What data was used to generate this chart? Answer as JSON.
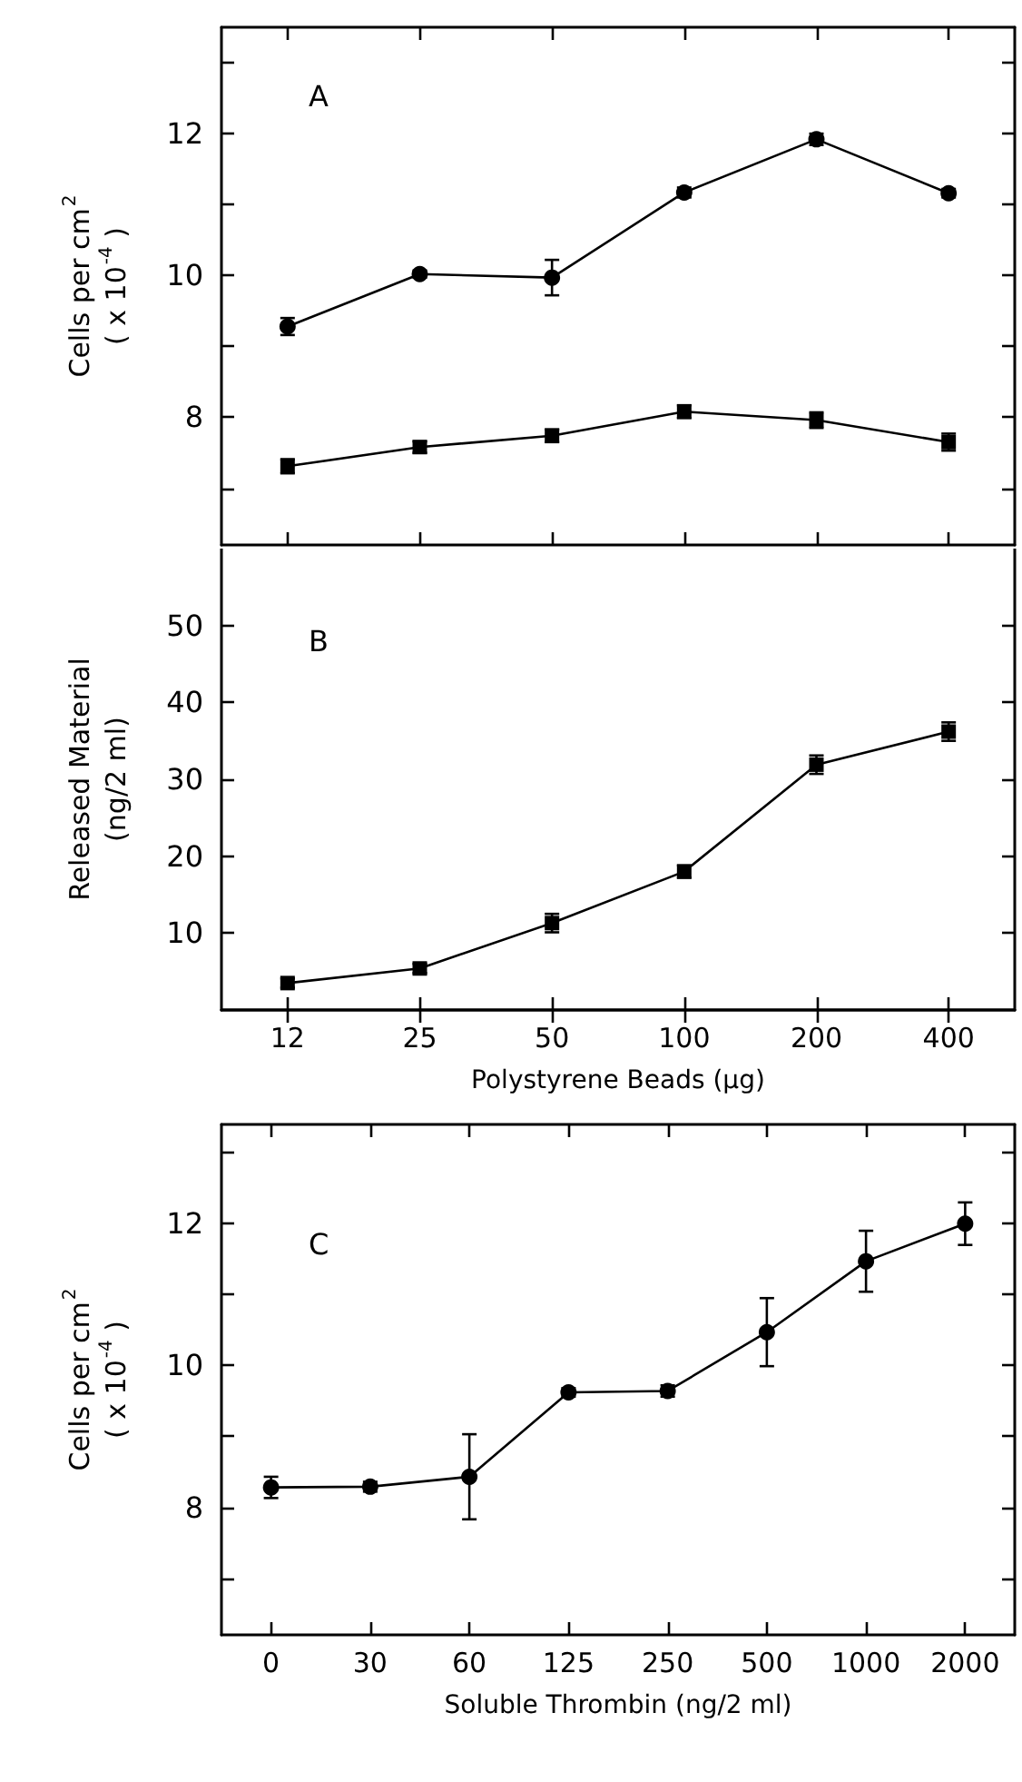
{
  "chart_data": [
    {
      "type": "line",
      "title": "A",
      "ylabel": "Cells per cm$^{2}$\n( x 10$^{-4}$ )",
      "categories": [
        "12",
        "25",
        "50",
        "100",
        "200",
        "400"
      ],
      "ylim": [
        6.2,
        13.5
      ],
      "yticks": [
        {
          "value": 7,
          "label": null
        },
        8,
        {
          "value": 9,
          "label": null
        },
        10,
        {
          "value": 11,
          "label": null
        },
        12,
        {
          "value": 13,
          "label": null
        }
      ],
      "grid": false,
      "tick_labels": "y",
      "line_style": "solid",
      "series": [
        {
          "color": "#000000",
          "marker": "circle",
          "values": [
            9.28,
            10.02,
            9.97,
            11.17,
            11.92,
            11.16
          ],
          "errors": [
            0.12,
            0.05,
            0.25,
            0.07,
            0.08,
            0.06
          ]
        },
        {
          "color": "#000000",
          "marker": "square",
          "values": [
            7.31,
            7.58,
            7.74,
            8.08,
            7.96,
            7.65
          ],
          "errors": [
            0.1,
            0.08,
            0.09,
            0.09,
            0.11,
            0.12
          ]
        }
      ]
    },
    {
      "type": "line",
      "title": "B",
      "ylabel": "Released Material\n(ng/2 ml)",
      "xlabel": "Polystyrene Beads (μg)",
      "categories": [
        "12",
        "25",
        "50",
        "100",
        "200",
        "400"
      ],
      "ylim": [
        0,
        60
      ],
      "yticks": [
        10,
        20,
        30,
        40,
        50
      ],
      "grid": false,
      "line_style": "solid",
      "series": [
        {
          "color": "#000000",
          "marker": "square",
          "values": [
            3.5,
            5.4,
            11.3,
            18.0,
            31.9,
            36.2
          ],
          "errors": [
            0.6,
            0.6,
            1.2,
            0.8,
            1.2,
            1.2
          ]
        }
      ]
    },
    {
      "type": "line",
      "title": "C",
      "ylabel": "Cells per cm$^{2}$\n( x 10$^{-4}$ )",
      "xlabel": "Soluble Thrombin (ng/2 ml)",
      "categories": [
        "0",
        "30",
        "60",
        "125",
        "250",
        "500",
        "1000",
        "2000"
      ],
      "ylim": [
        6.2,
        13.4
      ],
      "yticks": [
        {
          "value": 7,
          "label": null
        },
        8,
        {
          "value": 9,
          "label": null
        },
        10,
        {
          "value": 11,
          "label": null
        },
        12,
        {
          "value": 13,
          "label": null
        }
      ],
      "grid": false,
      "line_style": "solid",
      "series": [
        {
          "color": "#000000",
          "marker": "circle",
          "values": [
            8.28,
            8.29,
            8.43,
            9.62,
            9.64,
            10.47,
            11.47,
            12.0
          ],
          "errors": [
            0.15,
            0.07,
            0.6,
            0.06,
            0.08,
            0.48,
            0.43,
            0.3
          ]
        }
      ]
    }
  ]
}
